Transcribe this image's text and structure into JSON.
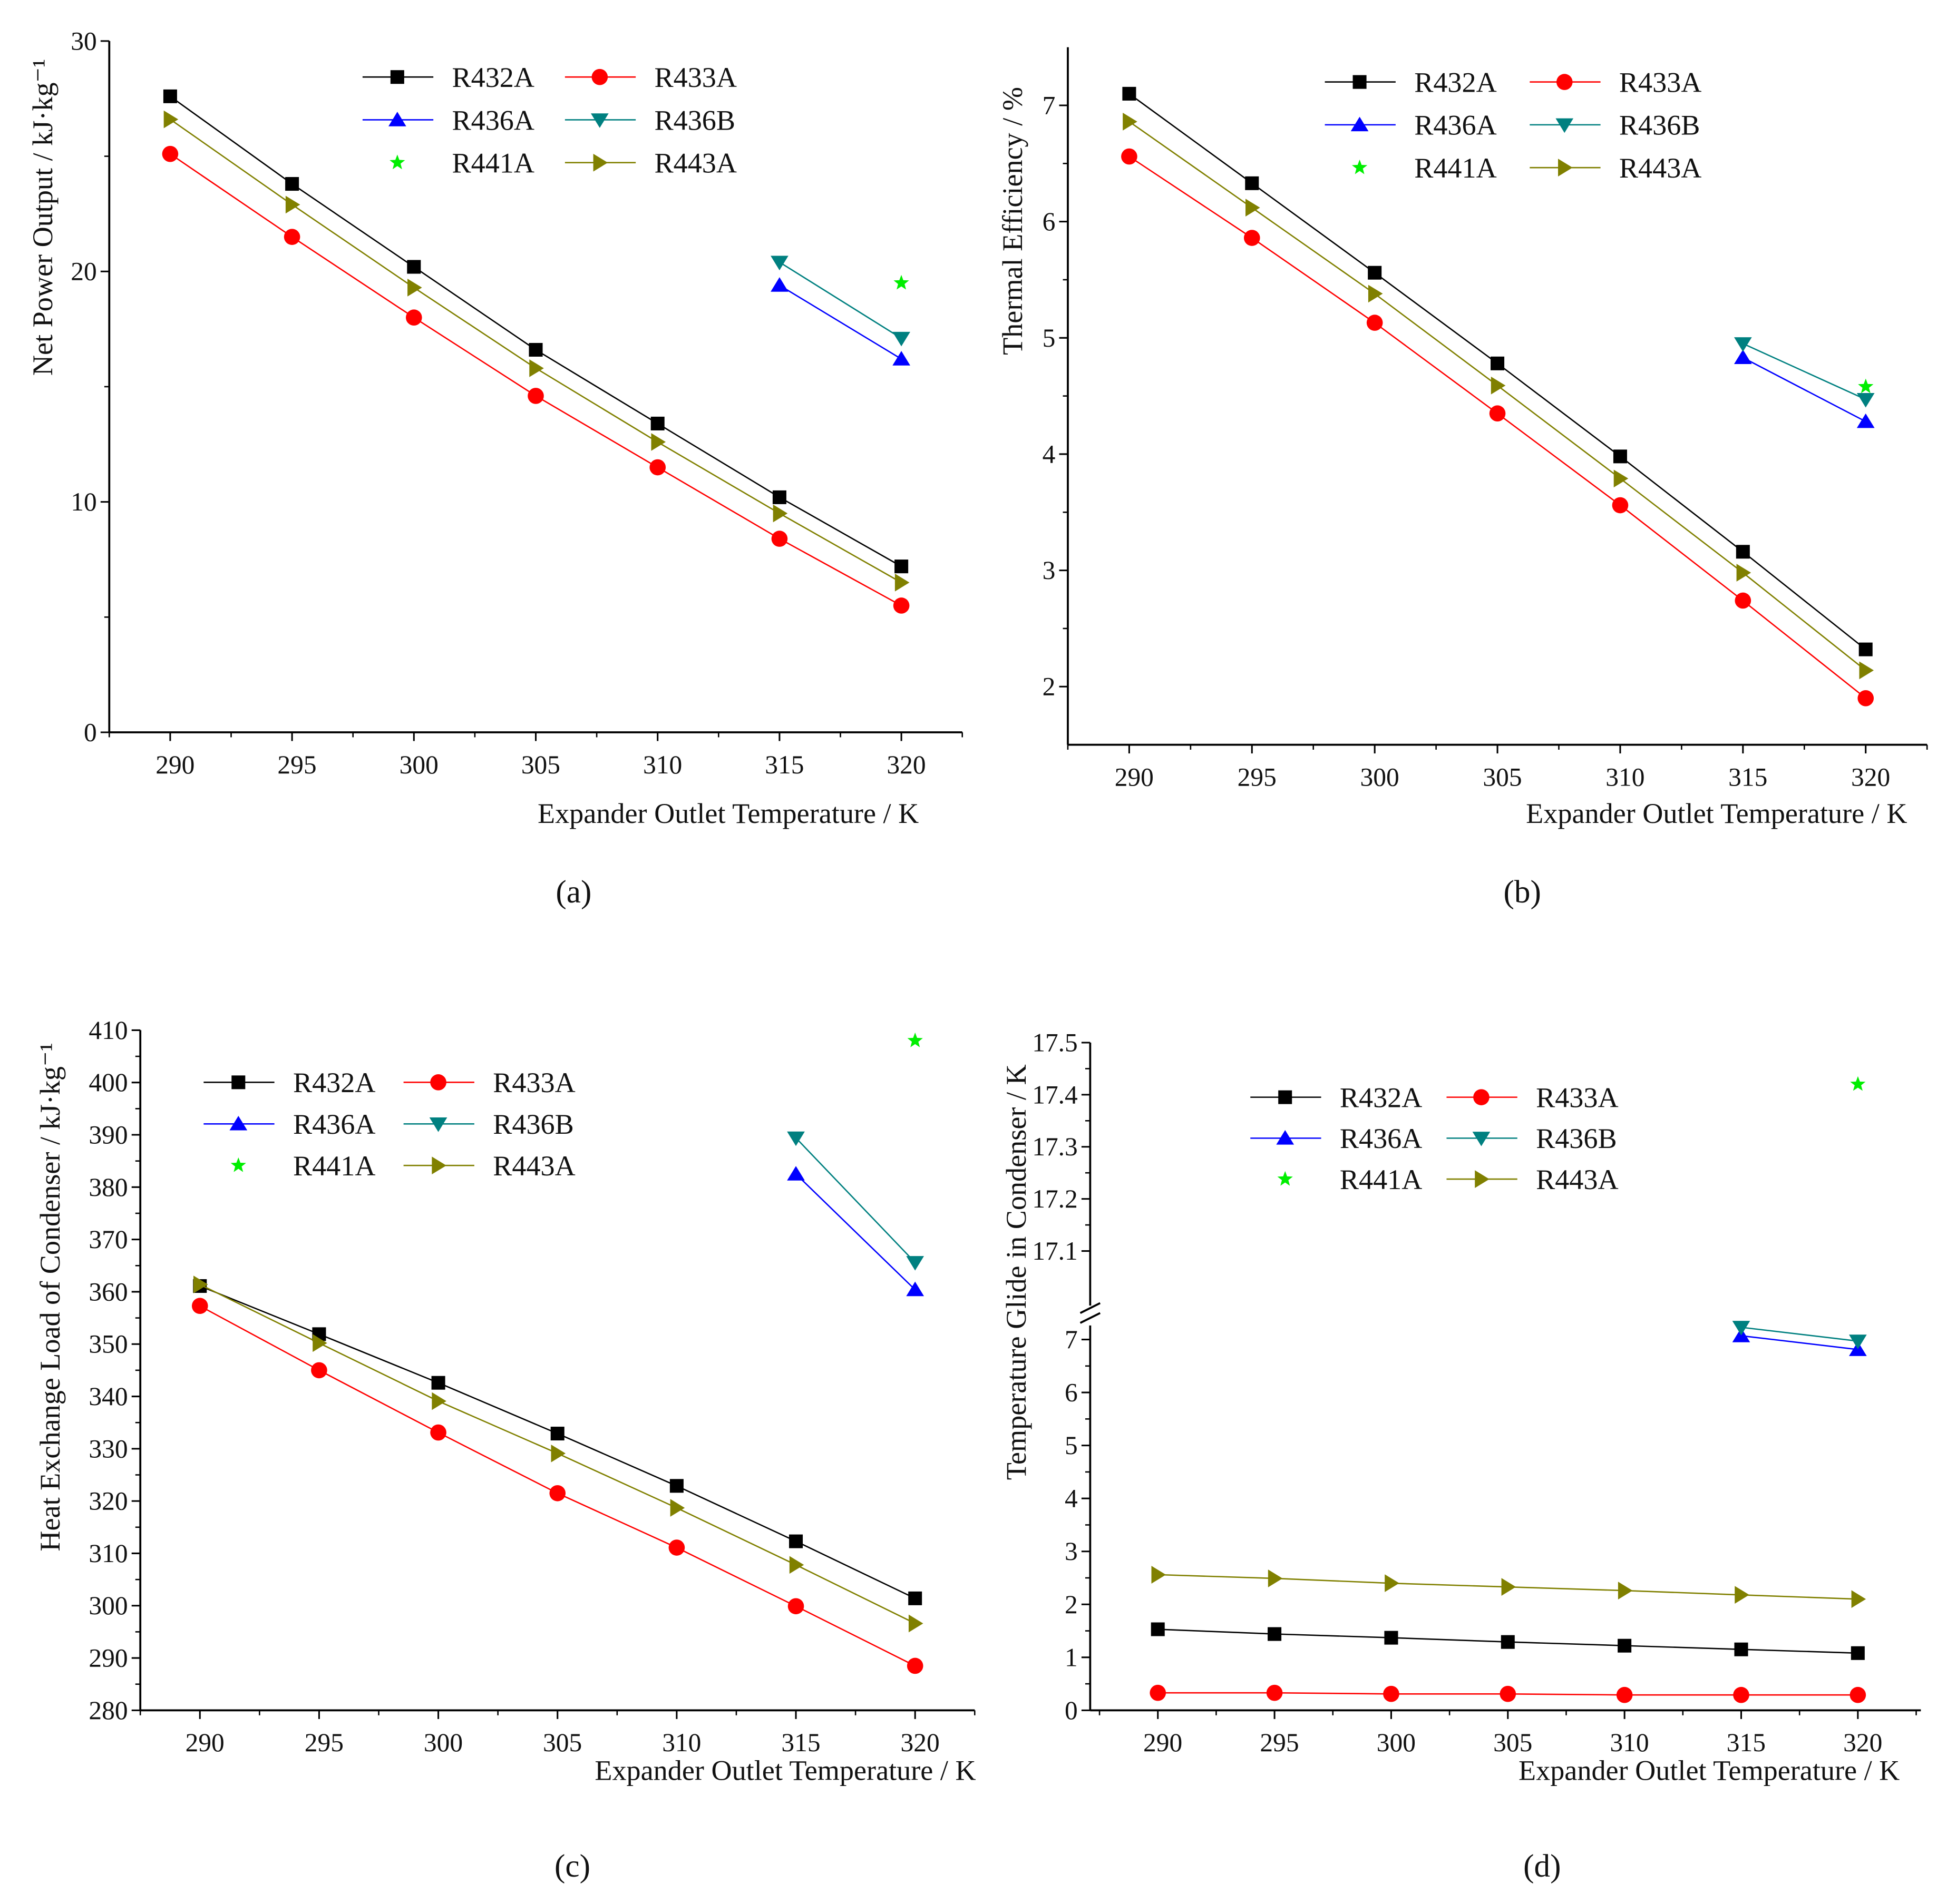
{
  "styles": {
    "R432A": {
      "color": "#000000",
      "marker": "square"
    },
    "R433A": {
      "color": "#ff0000",
      "marker": "circle"
    },
    "R436A": {
      "color": "#0000ff",
      "marker": "triangle-up"
    },
    "R436B": {
      "color": "#008080",
      "marker": "triangle-down"
    },
    "R441A": {
      "color": "#00ee00",
      "marker": "star"
    },
    "R443A": {
      "color": "#808000",
      "marker": "triangle-right"
    }
  },
  "legend_order": [
    "R432A",
    "R433A",
    "R436A",
    "R436B",
    "R441A",
    "R443A"
  ],
  "chart_data": [
    {
      "panel_label": "(a)",
      "type": "line",
      "xlabel": "Expander Outlet Temperature / K",
      "ylabel": "Net Power Output / kJ·kg⁻¹",
      "xlim": [
        287.5,
        322.5
      ],
      "ylim": [
        0,
        30
      ],
      "xticks": [
        290,
        295,
        300,
        305,
        310,
        315,
        320
      ],
      "yticks": [
        0,
        10,
        20,
        30
      ],
      "legend": "top-center",
      "series": [
        {
          "name": "R432A",
          "x": [
            290,
            295,
            300,
            305,
            310,
            315,
            320
          ],
          "y": [
            27.6,
            23.8,
            20.2,
            16.6,
            13.4,
            10.2,
            7.2
          ]
        },
        {
          "name": "R433A",
          "x": [
            290,
            295,
            300,
            305,
            310,
            315,
            320
          ],
          "y": [
            25.1,
            21.5,
            18.0,
            14.6,
            11.5,
            8.4,
            5.5
          ]
        },
        {
          "name": "R436A",
          "x": [
            315,
            320
          ],
          "y": [
            19.4,
            16.2
          ]
        },
        {
          "name": "R436B",
          "x": [
            315,
            320
          ],
          "y": [
            20.4,
            17.1
          ]
        },
        {
          "name": "R441A",
          "x": [
            320
          ],
          "y": [
            19.5
          ]
        },
        {
          "name": "R443A",
          "x": [
            290,
            295,
            300,
            305,
            310,
            315,
            320
          ],
          "y": [
            26.6,
            22.9,
            19.3,
            15.8,
            12.6,
            9.5,
            6.5
          ]
        }
      ]
    },
    {
      "panel_label": "(b)",
      "type": "line",
      "xlabel": "Expander Outlet Temperature / K",
      "ylabel": "Thermal Efficiency / %",
      "xlim": [
        287.5,
        322.5
      ],
      "ylim": [
        1.5,
        7.5
      ],
      "xticks": [
        290,
        295,
        300,
        305,
        310,
        315,
        320
      ],
      "yticks": [
        2,
        3,
        4,
        5,
        6,
        7
      ],
      "legend": "top-center",
      "series": [
        {
          "name": "R432A",
          "x": [
            290,
            295,
            300,
            305,
            310,
            315,
            320
          ],
          "y": [
            7.1,
            6.33,
            5.56,
            4.78,
            3.98,
            3.16,
            2.32
          ]
        },
        {
          "name": "R433A",
          "x": [
            290,
            295,
            300,
            305,
            310,
            315,
            320
          ],
          "y": [
            6.56,
            5.86,
            5.13,
            4.35,
            3.56,
            2.74,
            1.9
          ]
        },
        {
          "name": "R436A",
          "x": [
            315,
            320
          ],
          "y": [
            4.83,
            4.28
          ]
        },
        {
          "name": "R436B",
          "x": [
            315,
            320
          ],
          "y": [
            4.95,
            4.47
          ]
        },
        {
          "name": "R441A",
          "x": [
            320
          ],
          "y": [
            4.58
          ]
        },
        {
          "name": "R443A",
          "x": [
            290,
            295,
            300,
            305,
            310,
            315,
            320
          ],
          "y": [
            6.86,
            6.12,
            5.38,
            4.59,
            3.79,
            2.98,
            2.14
          ]
        }
      ]
    },
    {
      "panel_label": "(c)",
      "type": "line",
      "xlabel": "Expander Outlet Temperature / K",
      "ylabel": "Heat Exchange Load of Condenser / kJ·kg⁻¹",
      "xlim": [
        287.5,
        322.5
      ],
      "ylim": [
        280,
        410
      ],
      "xticks": [
        290,
        295,
        300,
        305,
        310,
        315,
        320
      ],
      "yticks": [
        280,
        290,
        300,
        310,
        320,
        330,
        340,
        350,
        360,
        370,
        380,
        390,
        400,
        410
      ],
      "legend": "top-left",
      "series": [
        {
          "name": "R432A",
          "x": [
            290,
            295,
            300,
            305,
            310,
            315,
            320
          ],
          "y": [
            361.1,
            351.9,
            342.6,
            332.9,
            322.9,
            312.3,
            301.4
          ]
        },
        {
          "name": "R433A",
          "x": [
            290,
            295,
            300,
            305,
            310,
            315,
            320
          ],
          "y": [
            357.3,
            345.0,
            333.1,
            321.5,
            311.1,
            299.9,
            288.5
          ]
        },
        {
          "name": "R436A",
          "x": [
            315,
            320
          ],
          "y": [
            382.5,
            360.4
          ]
        },
        {
          "name": "R436B",
          "x": [
            315,
            320
          ],
          "y": [
            389.4,
            365.6
          ]
        },
        {
          "name": "R441A",
          "x": [
            320
          ],
          "y": [
            408.0
          ]
        },
        {
          "name": "R443A",
          "x": [
            290,
            295,
            300,
            305,
            310,
            315,
            320
          ],
          "y": [
            361.4,
            350.2,
            339.1,
            329.1,
            318.7,
            307.8,
            296.6
          ]
        }
      ]
    },
    {
      "panel_label": "(d)",
      "type": "line",
      "xlabel": "Expander Outlet Temperature / K",
      "ylabel": "Temperature Glide in Condenser / K",
      "xlim": [
        287.1,
        322.7
      ],
      "ylim": [
        0,
        17.5
      ],
      "axis_break": {
        "lower": [
          0,
          7.5
        ],
        "upper": [
          17.0,
          17.5
        ]
      },
      "xticks": [
        290,
        295,
        300,
        305,
        310,
        315,
        320
      ],
      "yticks": [
        0,
        1,
        2,
        3,
        4,
        5,
        6,
        7,
        17.1,
        17.2,
        17.3,
        17.4,
        17.5
      ],
      "legend": "top-center",
      "series": [
        {
          "name": "R432A",
          "x": [
            290,
            295,
            300,
            305,
            310,
            315,
            320
          ],
          "y": [
            1.53,
            1.44,
            1.37,
            1.29,
            1.22,
            1.15,
            1.08
          ]
        },
        {
          "name": "R433A",
          "x": [
            290,
            295,
            300,
            305,
            310,
            315,
            320
          ],
          "y": [
            0.33,
            0.33,
            0.31,
            0.31,
            0.29,
            0.29,
            0.29
          ]
        },
        {
          "name": "R436A",
          "x": [
            315,
            320
          ],
          "y": [
            7.07,
            6.81
          ]
        },
        {
          "name": "R436B",
          "x": [
            315,
            320
          ],
          "y": [
            7.23,
            6.97
          ]
        },
        {
          "name": "R441A",
          "x": [
            320
          ],
          "y": [
            17.42
          ]
        },
        {
          "name": "R443A",
          "x": [
            290,
            295,
            300,
            305,
            310,
            315,
            320
          ],
          "y": [
            2.56,
            2.49,
            2.4,
            2.33,
            2.26,
            2.18,
            2.1
          ]
        }
      ]
    }
  ]
}
